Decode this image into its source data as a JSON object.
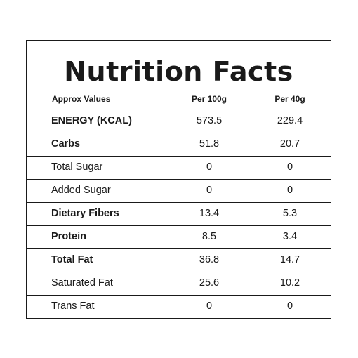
{
  "title": "Nutrition Facts",
  "header": {
    "label": "Approx Values",
    "col1": "Per 100g",
    "col2": "Per 40g"
  },
  "rows": [
    {
      "name": "ENERGY (KCAL)",
      "per100": "573.5",
      "per40": "229.4",
      "bold": true
    },
    {
      "name": "Carbs",
      "per100": "51.8",
      "per40": "20.7",
      "bold": true
    },
    {
      "name": "Total Sugar",
      "per100": "0",
      "per40": "0",
      "bold": false
    },
    {
      "name": "Added Sugar",
      "per100": "0",
      "per40": "0",
      "bold": false
    },
    {
      "name": "Dietary Fibers",
      "per100": "13.4",
      "per40": "5.3",
      "bold": true
    },
    {
      "name": "Protein",
      "per100": "8.5",
      "per40": "3.4",
      "bold": true
    },
    {
      "name": "Total Fat",
      "per100": "36.8",
      "per40": "14.7",
      "bold": true
    },
    {
      "name": "Saturated Fat",
      "per100": "25.6",
      "per40": "10.2",
      "bold": false
    },
    {
      "name": "Trans Fat",
      "per100": "0",
      "per40": "0",
      "bold": false
    }
  ]
}
